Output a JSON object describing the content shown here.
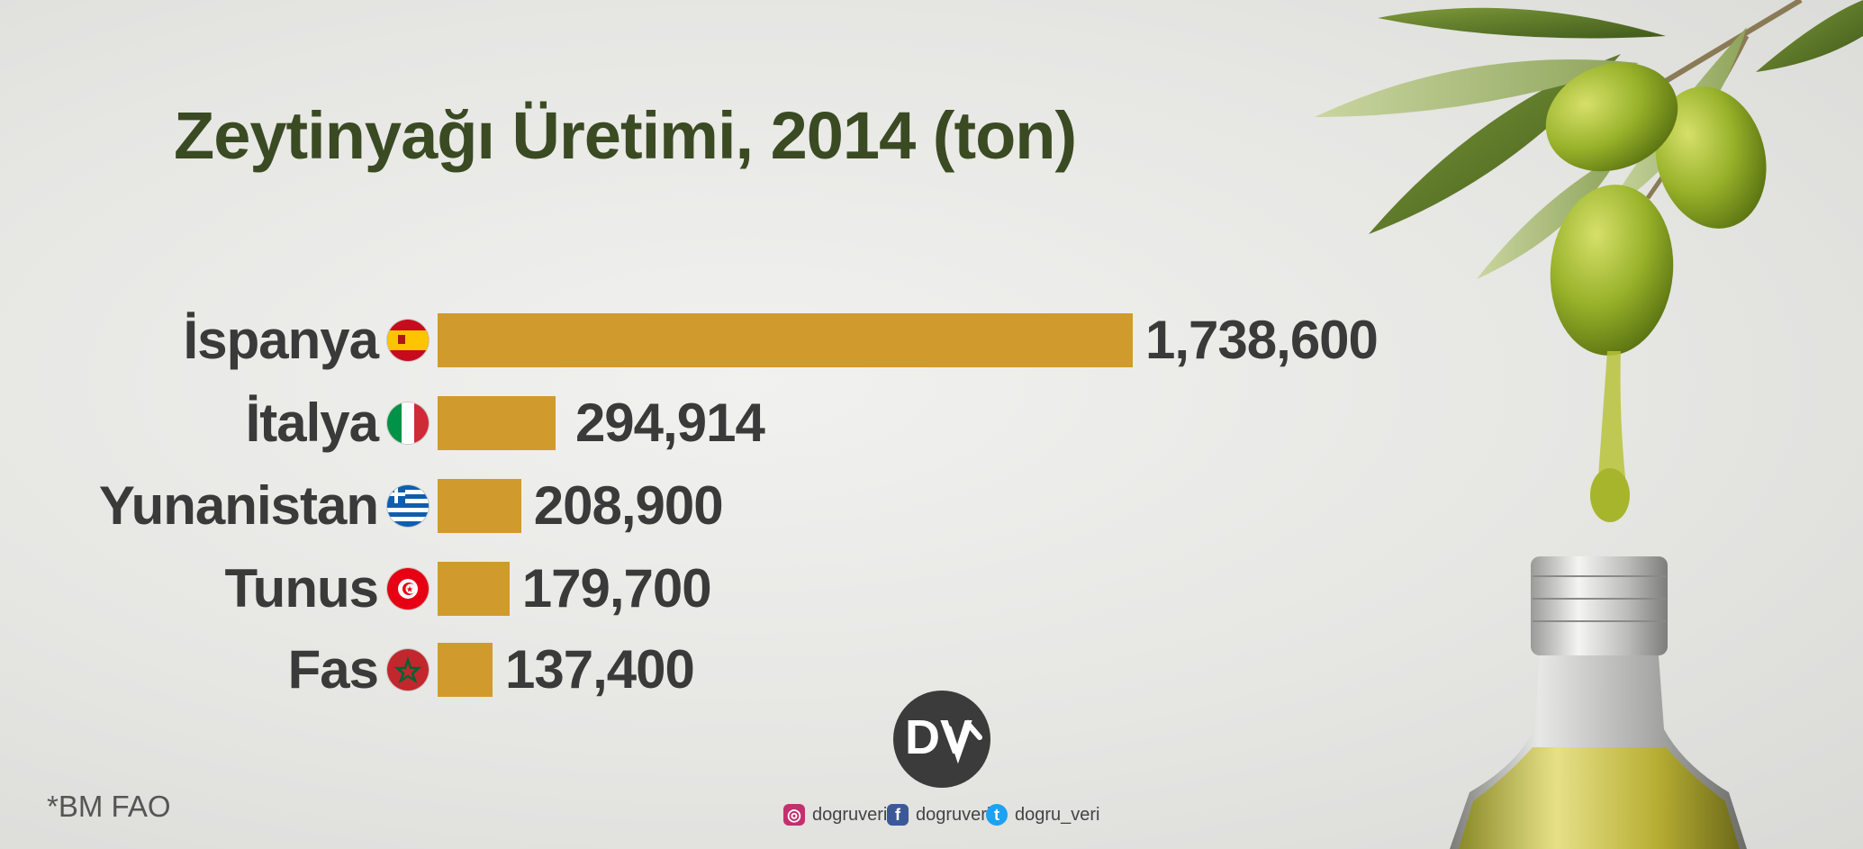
{
  "chart_data": {
    "type": "bar",
    "orientation": "horizontal",
    "title": "Zeytinyağı Üretimi, 2014 (ton)",
    "categories": [
      "İspanya",
      "İtalya",
      "Yunanistan",
      "Tunus",
      "Fas"
    ],
    "values": [
      1738600,
      294914,
      208900,
      179700,
      137400
    ],
    "value_labels": [
      "1,738,600",
      "294,914",
      "208,900",
      "179,700",
      "137,400"
    ],
    "flags": [
      "spain-flag",
      "italy-flag",
      "greece-flag",
      "tunisia-flag",
      "morocco-flag"
    ],
    "bar_color": "#d09a2c",
    "axes_visible": false,
    "grid": false
  },
  "source": "*BM FAO",
  "logo": {
    "text": "DV"
  },
  "social": [
    {
      "icon": "instagram-icon",
      "label": "dogruveri",
      "color": "#c2306e"
    },
    {
      "icon": "facebook-icon",
      "label": "dogruverii",
      "color": "#3b5998"
    },
    {
      "icon": "twitter-icon",
      "label": "dogru_veri",
      "color": "#1da1f2"
    }
  ],
  "colors": {
    "title": "#3a4a22",
    "text": "#3a3a3a"
  }
}
